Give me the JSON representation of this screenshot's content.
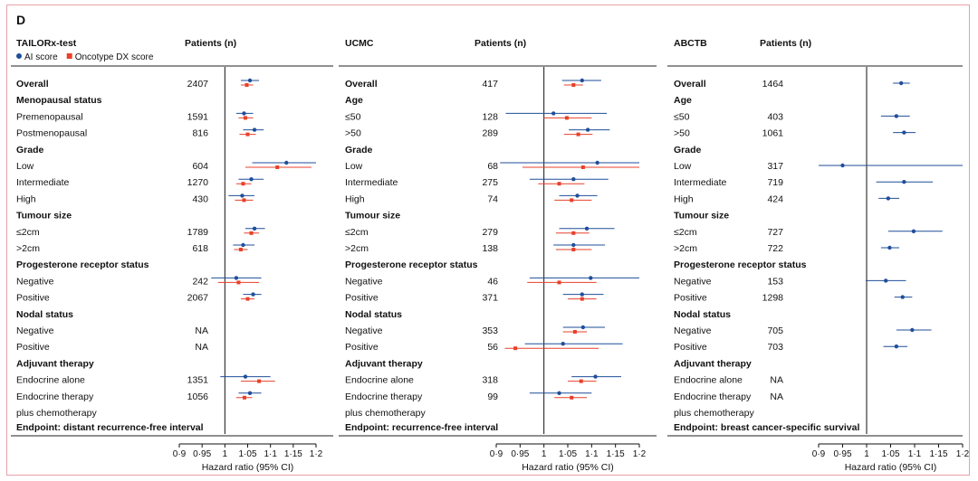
{
  "panel_label": "D",
  "chart_data": [
    {
      "type": "forest",
      "cohort": "TAILORx-test",
      "patients_header": "Patients (n)",
      "legend": [
        {
          "name": "AI score",
          "marker": "circle",
          "color": "#1f4e9a"
        },
        {
          "name": "Oncotype DX score",
          "marker": "square",
          "color": "#e8402a"
        }
      ],
      "x_ticks": [
        "0·9",
        "0·95",
        "1",
        "1·05",
        "1·1",
        "1·15",
        "1·2"
      ],
      "xlim": [
        0.9,
        1.2
      ],
      "xlabel": "Hazard ratio (95% CI)",
      "endpoint": "Endpoint: distant recurrence-free interval",
      "rows": [
        {
          "label": "Overall",
          "bold": true,
          "n": "2407",
          "ai": [
            1.055,
            1.035,
            1.075
          ],
          "dx": [
            1.048,
            1.035,
            1.062
          ]
        },
        {
          "label": "Menopausal status",
          "bold": true,
          "n": ""
        },
        {
          "label": "Premenopausal",
          "n": "1591",
          "ai": [
            1.042,
            1.025,
            1.062
          ],
          "dx": [
            1.045,
            1.03,
            1.062
          ]
        },
        {
          "label": "Postmenopausal",
          "n": "816",
          "ai": [
            1.065,
            1.04,
            1.085
          ],
          "dx": [
            1.05,
            1.032,
            1.068
          ]
        },
        {
          "label": "Grade",
          "bold": true,
          "n": ""
        },
        {
          "label": "Low",
          "n": "604",
          "ai": [
            1.135,
            1.06,
            1.21
          ],
          "dx": [
            1.115,
            1.045,
            1.19
          ]
        },
        {
          "label": "Intermediate",
          "n": "1270",
          "ai": [
            1.058,
            1.03,
            1.085
          ],
          "dx": [
            1.04,
            1.025,
            1.058
          ]
        },
        {
          "label": "High",
          "n": "430",
          "ai": [
            1.038,
            1.008,
            1.065
          ],
          "dx": [
            1.042,
            1.022,
            1.062
          ]
        },
        {
          "label": "Tumour size",
          "bold": true,
          "n": ""
        },
        {
          "label": "≤2cm",
          "n": "1789",
          "ai": [
            1.065,
            1.045,
            1.088
          ],
          "dx": [
            1.058,
            1.042,
            1.075
          ]
        },
        {
          "label": ">2cm",
          "n": "618",
          "ai": [
            1.04,
            1.018,
            1.065
          ],
          "dx": [
            1.035,
            1.02,
            1.05
          ]
        },
        {
          "label": "Progesterone receptor status",
          "bold": true,
          "n": ""
        },
        {
          "label": "Negative",
          "n": "242",
          "ai": [
            1.025,
            0.97,
            1.08
          ],
          "dx": [
            1.03,
            0.985,
            1.075
          ]
        },
        {
          "label": "Positive",
          "n": "2067",
          "ai": [
            1.062,
            1.04,
            1.08
          ],
          "dx": [
            1.05,
            1.035,
            1.065
          ]
        },
        {
          "label": "Nodal status",
          "bold": true,
          "n": ""
        },
        {
          "label": "Negative",
          "n": "NA"
        },
        {
          "label": "Positive",
          "n": "NA"
        },
        {
          "label": "Adjuvant therapy",
          "bold": true,
          "n": ""
        },
        {
          "label": "Endocrine alone",
          "n": "1351",
          "ai": [
            1.045,
            0.99,
            1.1
          ],
          "dx": [
            1.075,
            1.035,
            1.11
          ]
        },
        {
          "label": "Endocrine therapy",
          "n": "1056",
          "ai": [
            1.055,
            1.03,
            1.08
          ],
          "dx": [
            1.043,
            1.025,
            1.06
          ]
        },
        {
          "label": "plus chemotherapy",
          "n": ""
        }
      ]
    },
    {
      "type": "forest",
      "cohort": "UCMC",
      "patients_header": "Patients (n)",
      "x_ticks": [
        "0·9",
        "0·95",
        "1",
        "1·05",
        "1·1",
        "1·15",
        "1·2"
      ],
      "xlim": [
        0.9,
        1.2
      ],
      "xlabel": "Hazard ratio (95% CI)",
      "endpoint": "Endpoint: recurrence-free interval",
      "rows": [
        {
          "label": "Overall",
          "bold": true,
          "n": "417",
          "ai": [
            1.08,
            1.038,
            1.12
          ],
          "dx": [
            1.062,
            1.042,
            1.082
          ]
        },
        {
          "label": "Age",
          "bold": true,
          "n": ""
        },
        {
          "label": "≤50",
          "n": "128",
          "ai": [
            1.02,
            0.92,
            1.132
          ],
          "dx": [
            1.048,
            1.0,
            1.1
          ]
        },
        {
          "label": ">50",
          "n": "289",
          "ai": [
            1.092,
            1.052,
            1.138
          ],
          "dx": [
            1.072,
            1.042,
            1.102
          ]
        },
        {
          "label": "Grade",
          "bold": true,
          "n": ""
        },
        {
          "label": "Low",
          "n": "68",
          "ai": [
            1.112,
            0.908,
            1.248
          ],
          "dx": [
            1.082,
            0.955,
            1.22
          ]
        },
        {
          "label": "Intermediate",
          "n": "275",
          "ai": [
            1.062,
            0.97,
            1.135
          ],
          "dx": [
            1.032,
            0.988,
            1.085
          ]
        },
        {
          "label": "High",
          "n": "74",
          "ai": [
            1.07,
            1.032,
            1.112
          ],
          "dx": [
            1.058,
            1.022,
            1.1
          ]
        },
        {
          "label": "Tumour size",
          "bold": true,
          "n": ""
        },
        {
          "label": "≤2cm",
          "n": "279",
          "ai": [
            1.09,
            1.032,
            1.148
          ],
          "dx": [
            1.062,
            1.025,
            1.095
          ]
        },
        {
          "label": ">2cm",
          "n": "138",
          "ai": [
            1.062,
            1.02,
            1.128
          ],
          "dx": [
            1.062,
            1.025,
            1.1
          ]
        },
        {
          "label": "Progesterone receptor status",
          "bold": true,
          "n": ""
        },
        {
          "label": "Negative",
          "n": "46",
          "ai": [
            1.098,
            0.97,
            1.245
          ],
          "dx": [
            1.032,
            0.965,
            1.11
          ]
        },
        {
          "label": "Positive",
          "n": "371",
          "ai": [
            1.08,
            1.04,
            1.125
          ],
          "dx": [
            1.08,
            1.05,
            1.11
          ]
        },
        {
          "label": "Nodal status",
          "bold": true,
          "n": ""
        },
        {
          "label": "Negative",
          "n": "353",
          "ai": [
            1.082,
            1.04,
            1.128
          ],
          "dx": [
            1.065,
            1.04,
            1.09
          ]
        },
        {
          "label": "Positive",
          "n": "56",
          "ai": [
            1.04,
            0.96,
            1.165
          ],
          "dx": [
            0.94,
            0.918,
            1.115
          ]
        },
        {
          "label": "Adjuvant therapy",
          "bold": true,
          "n": ""
        },
        {
          "label": "Endocrine alone",
          "n": "318",
          "ai": [
            1.108,
            1.058,
            1.162
          ],
          "dx": [
            1.078,
            1.05,
            1.11
          ]
        },
        {
          "label": "Endocrine therapy",
          "n": "99",
          "ai": [
            1.032,
            0.97,
            1.1
          ],
          "dx": [
            1.058,
            1.022,
            1.09
          ]
        },
        {
          "label": "plus chemotherapy",
          "n": ""
        }
      ]
    },
    {
      "type": "forest",
      "cohort": "ABCTB",
      "patients_header": "Patients (n)",
      "x_ticks": [
        "0·9",
        "0·95",
        "1",
        "1·05",
        "1·1",
        "1·15",
        "1·2"
      ],
      "xlim": [
        0.9,
        1.2
      ],
      "xlabel": "Hazard ratio (95% CI)",
      "endpoint": "Endpoint: breast cancer-specific survival",
      "rows": [
        {
          "label": "Overall",
          "bold": true,
          "n": "1464",
          "ai": [
            1.072,
            1.055,
            1.09
          ]
        },
        {
          "label": "Age",
          "bold": true,
          "n": ""
        },
        {
          "label": "≤50",
          "n": "403",
          "ai": [
            1.062,
            1.03,
            1.09
          ]
        },
        {
          "label": ">50",
          "n": "1061",
          "ai": [
            1.078,
            1.055,
            1.102
          ]
        },
        {
          "label": "Grade",
          "bold": true,
          "n": ""
        },
        {
          "label": "Low",
          "n": "317",
          "ai": [
            0.95,
            0.895,
            1.21
          ]
        },
        {
          "label": "Intermediate",
          "n": "719",
          "ai": [
            1.078,
            1.02,
            1.138
          ]
        },
        {
          "label": "High",
          "n": "424",
          "ai": [
            1.045,
            1.025,
            1.068
          ]
        },
        {
          "label": "Tumour size",
          "bold": true,
          "n": ""
        },
        {
          "label": "≤2cm",
          "n": "727",
          "ai": [
            1.098,
            1.045,
            1.158
          ]
        },
        {
          "label": ">2cm",
          "n": "722",
          "ai": [
            1.048,
            1.03,
            1.068
          ]
        },
        {
          "label": "Progesterone receptor status",
          "bold": true,
          "n": ""
        },
        {
          "label": "Negative",
          "n": "153",
          "ai": [
            1.04,
            0.998,
            1.082
          ]
        },
        {
          "label": "Positive",
          "n": "1298",
          "ai": [
            1.075,
            1.058,
            1.095
          ]
        },
        {
          "label": "Nodal status",
          "bold": true,
          "n": ""
        },
        {
          "label": "Negative",
          "n": "705",
          "ai": [
            1.095,
            1.062,
            1.135
          ]
        },
        {
          "label": "Positive",
          "n": "703",
          "ai": [
            1.062,
            1.035,
            1.085
          ]
        },
        {
          "label": "Adjuvant therapy",
          "bold": true,
          "n": ""
        },
        {
          "label": "Endocrine alone",
          "n": "NA"
        },
        {
          "label": "Endocrine therapy",
          "n": "NA"
        },
        {
          "label": "plus chemotherapy",
          "n": ""
        }
      ]
    }
  ]
}
